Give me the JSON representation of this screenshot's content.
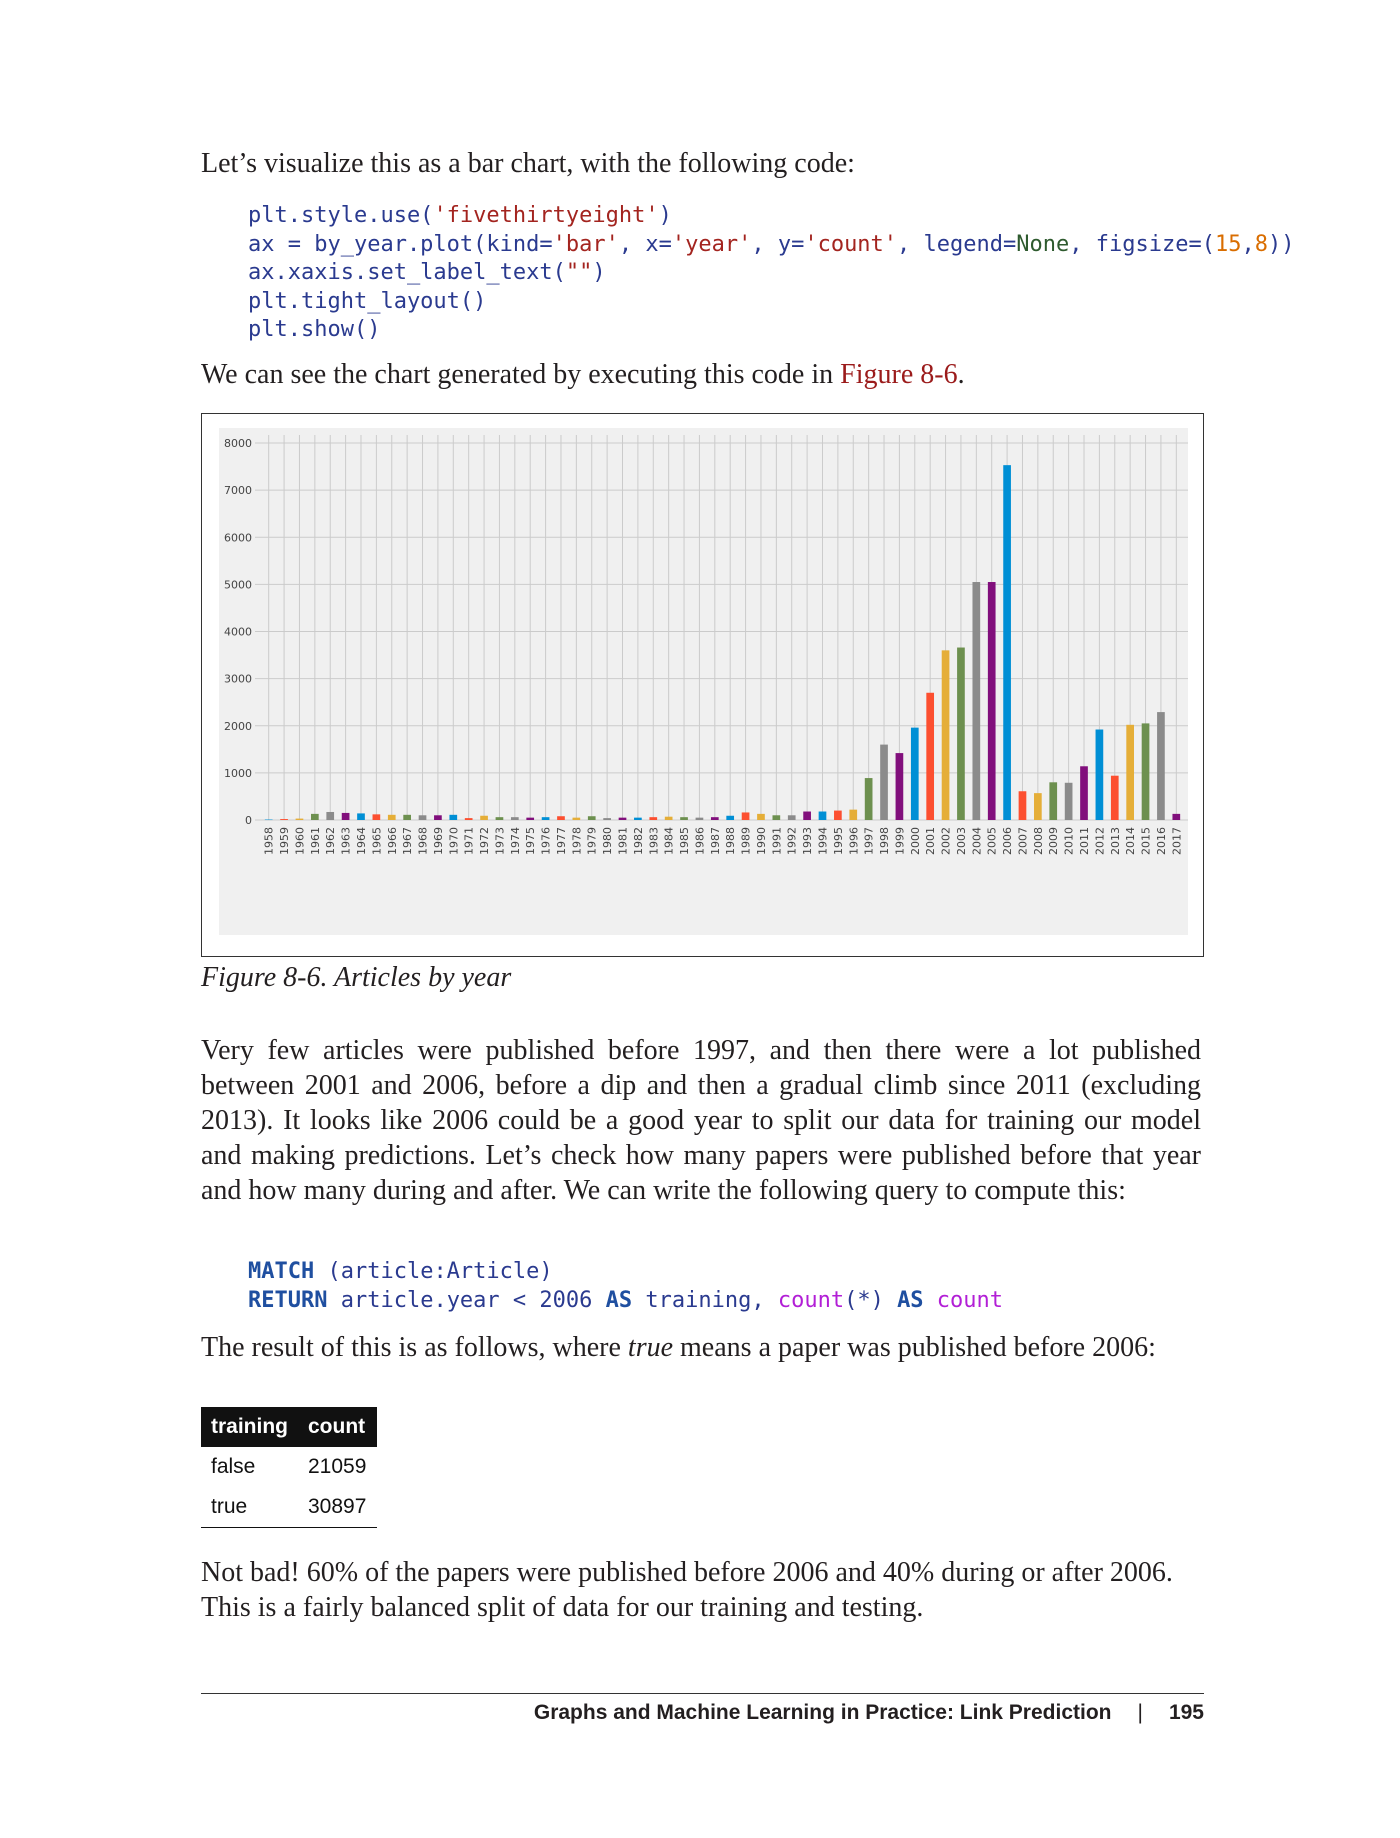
{
  "intro_text": "Let’s visualize this as a bar chart, with the following code:",
  "code_plot": {
    "line1": {
      "a": "plt.style.use(",
      "b": "'fivethirtyeight'",
      "c": ")"
    },
    "line2": {
      "a": "ax = by_year.plot(kind=",
      "b": "'bar'",
      "c": ", x=",
      "d": "'year'",
      "e": ", y=",
      "f": "'count'",
      "g": ", legend=",
      "h": "None",
      "i": ", figsize=(",
      "j": "15",
      "k": ",",
      "l": "8",
      "m": "))"
    },
    "line3": {
      "a": "ax.xaxis.set_label_text(",
      "b": "\"\"",
      "c": ")"
    },
    "line4": "plt.tight_layout()",
    "line5": "plt.show()"
  },
  "see_chart_text": {
    "before": "We can see the chart generated by executing this code in ",
    "link": "Figure 8-6",
    "after": "."
  },
  "figure_caption": "Figure 8-6. Articles by year",
  "chart_data": {
    "type": "bar",
    "title": "",
    "xlabel": "",
    "ylabel": "",
    "ylim": [
      0,
      8000
    ],
    "yticks": [
      0,
      1000,
      2000,
      3000,
      4000,
      5000,
      6000,
      7000,
      8000
    ],
    "grid": true,
    "categories": [
      "1958",
      "1959",
      "1960",
      "1961",
      "1962",
      "1963",
      "1964",
      "1965",
      "1966",
      "1967",
      "1968",
      "1969",
      "1970",
      "1971",
      "1972",
      "1973",
      "1974",
      "1975",
      "1976",
      "1977",
      "1978",
      "1979",
      "1980",
      "1981",
      "1982",
      "1983",
      "1984",
      "1985",
      "1986",
      "1987",
      "1988",
      "1989",
      "1990",
      "1991",
      "1992",
      "1993",
      "1994",
      "1995",
      "1996",
      "1997",
      "1998",
      "1999",
      "2000",
      "2001",
      "2002",
      "2003",
      "2004",
      "2005",
      "2006",
      "2007",
      "2008",
      "2009",
      "2010",
      "2011",
      "2012",
      "2013",
      "2014",
      "2015",
      "2016",
      "2017"
    ],
    "values": [
      10,
      20,
      30,
      130,
      170,
      150,
      140,
      120,
      110,
      110,
      100,
      100,
      110,
      40,
      90,
      60,
      60,
      50,
      60,
      80,
      50,
      80,
      40,
      50,
      50,
      60,
      70,
      60,
      50,
      60,
      90,
      160,
      130,
      100,
      100,
      180,
      180,
      200,
      220,
      890,
      1600,
      1420,
      1960,
      2700,
      3600,
      3660,
      5050,
      5050,
      7530,
      610,
      570,
      800,
      790,
      1140,
      1920,
      940,
      2020,
      2050,
      2290,
      130
    ],
    "colors": [
      "#008fd5",
      "#fc4f30",
      "#e5ae38",
      "#6d904f",
      "#8b8b8b",
      "#810f7c"
    ]
  },
  "analysis_text": "Very few articles were published before 1997, and then there were a lot published between 2001 and 2006, before a dip and then a gradual climb since 2011 (excluding 2013). It looks like 2006 could be a good year to split our data for training our model and making predictions. Let’s check how many papers were published before that year and how many during and after. We can write the following query to compute this:",
  "query": {
    "line1": {
      "kw": "MATCH",
      "rest": " (article:Article)"
    },
    "line2": {
      "kw": "RETURN",
      "a": " article.year < 2006 ",
      "as1": "AS",
      "b": " training, ",
      "fn": "count",
      "c": "(*) ",
      "as2": "AS",
      "d": " count"
    }
  },
  "result_text": {
    "before": "The result of this is as follows, where ",
    "em": "true",
    "after": " means a paper was published before 2006:"
  },
  "result_table": {
    "headers": [
      "training",
      "count"
    ],
    "rows": [
      [
        "false",
        "21059"
      ],
      [
        "true",
        "30897"
      ]
    ]
  },
  "conclusion_text": "Not bad! 60% of the papers were published before 2006 and 40% during or after 2006. This is a fairly balanced split of data for our training and testing.",
  "footer": {
    "chapter": "Graphs and Machine Learning in Practice: Link Prediction",
    "separator": "|",
    "page": "195"
  }
}
